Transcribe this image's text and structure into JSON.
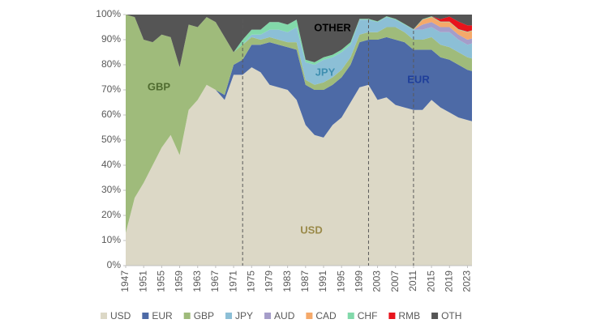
{
  "chart_data": {
    "type": "stacked-area",
    "x": [
      1947,
      1949,
      1951,
      1953,
      1955,
      1957,
      1959,
      1961,
      1963,
      1965,
      1967,
      1969,
      1971,
      1973,
      1975,
      1977,
      1979,
      1981,
      1983,
      1985,
      1987,
      1989,
      1991,
      1993,
      1995,
      1997,
      1999,
      2001,
      2003,
      2005,
      2007,
      2009,
      2011,
      2013,
      2015,
      2017,
      2019,
      2021,
      2023,
      2024
    ],
    "series": [
      {
        "name": "USD",
        "color": "#dcd8c6",
        "values": [
          13,
          27,
          33,
          40,
          47,
          52,
          44,
          62,
          66,
          72,
          70,
          66,
          76,
          76,
          79,
          77,
          72,
          71,
          70,
          66,
          56,
          52,
          51,
          56,
          59,
          65,
          71,
          72,
          66,
          67,
          64,
          63,
          62,
          62,
          66,
          63,
          61,
          59,
          58,
          57.5
        ]
      },
      {
        "name": "EUR",
        "color": "#4d6aa6",
        "values": [
          0,
          0,
          0,
          0,
          0,
          0,
          0,
          0,
          0,
          0,
          0,
          2,
          4,
          6,
          9,
          11,
          17,
          17,
          17,
          20,
          16,
          18,
          19,
          16,
          16,
          15,
          18,
          18,
          24,
          24,
          26,
          26,
          24,
          24,
          20,
          20,
          21,
          21,
          20,
          20
        ]
      },
      {
        "name": "GBP",
        "color": "#9fbb7b",
        "values": [
          87,
          72,
          57,
          49,
          45,
          39,
          35,
          34,
          29,
          27,
          27,
          23,
          5,
          6,
          3,
          2,
          2,
          2,
          2,
          3,
          2,
          2,
          3,
          3,
          3,
          3,
          3,
          3,
          3,
          4,
          5,
          4,
          4,
          4,
          5,
          5,
          5,
          5,
          5,
          5
        ]
      },
      {
        "name": "JPY",
        "color": "#8cbfd6",
        "values": [
          0,
          0,
          0,
          0,
          0,
          0,
          0,
          0,
          0,
          0,
          0,
          0,
          0,
          0,
          1,
          2,
          3,
          4,
          4,
          6,
          7,
          8,
          9,
          8,
          7,
          5,
          6,
          5,
          4,
          4,
          3,
          3,
          4,
          4,
          4,
          5,
          6,
          5,
          5,
          6
        ]
      },
      {
        "name": "AUD",
        "color": "#a59dc9",
        "values": [
          0,
          0,
          0,
          0,
          0,
          0,
          0,
          0,
          0,
          0,
          0,
          0,
          0,
          0,
          0,
          0,
          0,
          0,
          0,
          0,
          0,
          0,
          0,
          0,
          0,
          0,
          0,
          0,
          0,
          0,
          0,
          0,
          0,
          2,
          2,
          2,
          2,
          2,
          2,
          2
        ]
      },
      {
        "name": "CAD",
        "color": "#f5a96a",
        "values": [
          0,
          0,
          0,
          0,
          0,
          0,
          0,
          0,
          0,
          0,
          0,
          0,
          0,
          0,
          0,
          0,
          0,
          0,
          0,
          0,
          0,
          0,
          0,
          0,
          0,
          0,
          0,
          0,
          0,
          0,
          0,
          0,
          0,
          2,
          2,
          2,
          2,
          2,
          3,
          3
        ]
      },
      {
        "name": "CHF",
        "color": "#82d9aa",
        "values": [
          0,
          0,
          0,
          0,
          0,
          0,
          0,
          0,
          0,
          0,
          0,
          0,
          0,
          2,
          2,
          2,
          3,
          3,
          3,
          3,
          1,
          1,
          1,
          1,
          1,
          1,
          0.3,
          0.3,
          0.3,
          0.3,
          0.3,
          0.3,
          0.2,
          0.2,
          0.3,
          0.2,
          0.2,
          0.2,
          0.2,
          0.2
        ]
      },
      {
        "name": "RMB",
        "color": "#e8141c",
        "values": [
          0,
          0,
          0,
          0,
          0,
          0,
          0,
          0,
          0,
          0,
          0,
          0,
          0,
          0,
          0,
          0,
          0,
          0,
          0,
          0,
          0,
          0,
          0,
          0,
          0,
          0,
          0,
          0,
          0,
          0,
          0,
          0,
          0,
          0,
          0,
          1,
          2,
          3,
          2.5,
          2
        ]
      },
      {
        "name": "OTH",
        "color": "#555555",
        "values": [
          0,
          1,
          10,
          11,
          8,
          9,
          21,
          4,
          5,
          1,
          3,
          9,
          15,
          10,
          6,
          6,
          3,
          3,
          4,
          2,
          18,
          19,
          17,
          16,
          14,
          11,
          1.7,
          1.7,
          2.7,
          0.7,
          1.7,
          3.7,
          5.8,
          1.8,
          0.7,
          1.8,
          0.8,
          2.8,
          4.3,
          4.3
        ]
      }
    ],
    "xlim": [
      1947,
      2024
    ],
    "xticks": [
      1947,
      1951,
      1955,
      1959,
      1963,
      1967,
      1971,
      1975,
      1979,
      1983,
      1987,
      1991,
      1995,
      1999,
      2003,
      2007,
      2011,
      2015,
      2019,
      2023
    ],
    "ylim": [
      0,
      100
    ],
    "yticks": [
      {
        "value": 0,
        "label": "0%"
      },
      {
        "value": 10,
        "label": "10%"
      },
      {
        "value": 20,
        "label": "20%"
      },
      {
        "value": 30,
        "label": "30%"
      },
      {
        "value": 40,
        "label": "40%"
      },
      {
        "value": 50,
        "label": "50%"
      },
      {
        "value": 60,
        "label": "60%"
      },
      {
        "value": 70,
        "label": "70%"
      },
      {
        "value": 80,
        "label": "80%"
      },
      {
        "value": 90,
        "label": "90%"
      },
      {
        "value": 100,
        "label": "100%"
      }
    ],
    "vlines": [
      1973,
      2001,
      2011
    ],
    "annotations": [
      {
        "text": "GBP",
        "color": "#4f6b2f"
      },
      {
        "text": "OTHER",
        "color": "#000000"
      },
      {
        "text": "JPY",
        "color": "#3f8fb0"
      },
      {
        "text": "EUR",
        "color": "#1f3f9a"
      },
      {
        "text": "USD",
        "color": "#9a8a4a"
      }
    ],
    "legend": "bottom"
  }
}
